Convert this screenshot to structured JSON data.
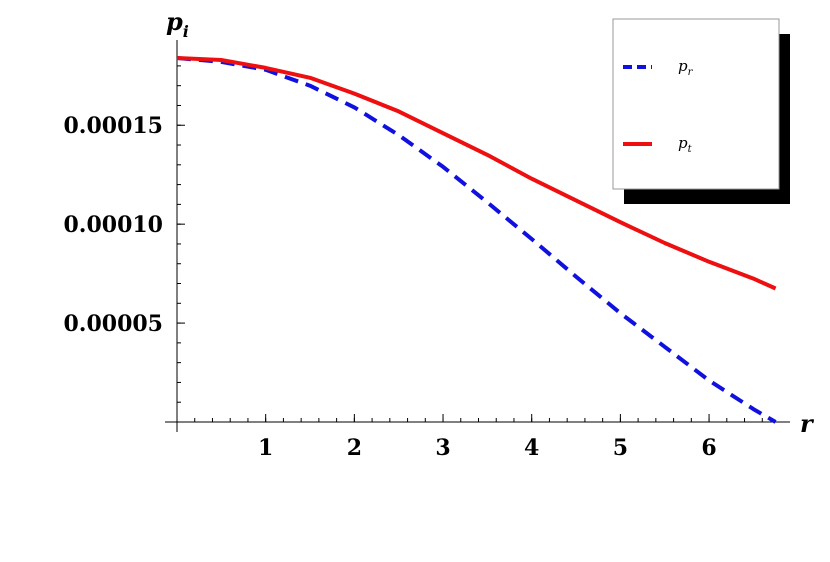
{
  "chart_data": {
    "type": "line",
    "title": "",
    "xlabel": "r",
    "ylabel": {
      "main": "p",
      "sub": "i"
    },
    "xlim": [
      0,
      6.8
    ],
    "ylim": [
      0,
      0.000185
    ],
    "x_ticks": [
      1,
      2,
      3,
      4,
      5,
      6
    ],
    "x_tick_labels": [
      "1",
      "2",
      "3",
      "4",
      "5",
      "6"
    ],
    "y_ticks": [
      5e-05,
      0.0001,
      0.00015
    ],
    "y_tick_labels": [
      "0.00005",
      "0.00010",
      "0.00015"
    ],
    "grid": false,
    "legend_position": "top-right",
    "series": [
      {
        "name": {
          "main": "p",
          "sub": "r"
        },
        "style": "dashed",
        "color": "#1010e0",
        "x": [
          0,
          0.5,
          1,
          1.5,
          2,
          2.5,
          3,
          3.5,
          4,
          4.5,
          5,
          5.5,
          6,
          6.5,
          6.75
        ],
        "y": [
          0.000184,
          0.000182,
          0.000178,
          0.00017,
          0.000159,
          0.000145,
          0.000129,
          0.000111,
          9.25e-05,
          7.35e-05,
          5.5e-05,
          3.8e-05,
          2.1e-05,
          6.5e-06,
          0.0
        ]
      },
      {
        "name": {
          "main": "p",
          "sub": "t"
        },
        "style": "solid",
        "color": "#ee1010",
        "x": [
          0,
          0.5,
          1,
          1.5,
          2,
          2.5,
          3,
          3.5,
          4,
          4.5,
          5,
          5.5,
          6,
          6.5,
          6.75
        ],
        "y": [
          0.000184,
          0.000183,
          0.000179,
          0.000174,
          0.000166,
          0.000157,
          0.000146,
          0.000135,
          0.000123,
          0.000112,
          0.000101,
          9.05e-05,
          8.1e-05,
          7.25e-05,
          6.75e-05
        ]
      }
    ]
  }
}
